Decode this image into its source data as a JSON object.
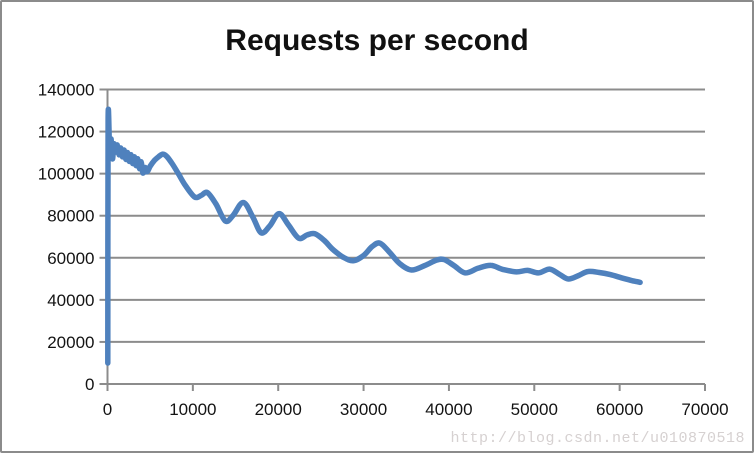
{
  "window": {
    "background": "#ffffff",
    "border_color": "#8b8b8b"
  },
  "watermark": {
    "text": "http://blog.csdn.net/u010870518",
    "color": "#d6d1d1"
  },
  "chart_data": {
    "type": "line",
    "title": "Requests per second",
    "xlabel": "",
    "ylabel": "",
    "xlim": [
      0,
      70000
    ],
    "ylim": [
      0,
      140000
    ],
    "x_ticks": [
      0,
      10000,
      20000,
      30000,
      40000,
      50000,
      60000,
      70000
    ],
    "y_ticks": [
      0,
      20000,
      40000,
      60000,
      80000,
      100000,
      120000,
      140000
    ],
    "grid": true,
    "legend": false,
    "grid_color": "#8c8c8c",
    "tick_label_color": "#131313",
    "series": [
      {
        "name": "Requests per second",
        "color": "#4f81bd",
        "points": [
          [
            40,
            10000
          ],
          [
            70,
            125800
          ],
          [
            260,
            109500
          ],
          [
            420,
            116500
          ],
          [
            580,
            107000
          ],
          [
            760,
            114200
          ],
          [
            950,
            110300
          ],
          [
            1150,
            113600
          ],
          [
            1350,
            109000
          ],
          [
            1550,
            112200
          ],
          [
            1750,
            108000
          ],
          [
            1950,
            111200
          ],
          [
            2150,
            106800
          ],
          [
            2350,
            110000
          ],
          [
            2550,
            105800
          ],
          [
            2750,
            109000
          ],
          [
            2950,
            104800
          ],
          [
            3150,
            108000
          ],
          [
            3350,
            103800
          ],
          [
            3550,
            107000
          ],
          [
            3750,
            102400
          ],
          [
            3950,
            105600
          ],
          [
            4150,
            100300
          ],
          [
            4400,
            102900
          ],
          [
            4650,
            100900
          ],
          [
            5000,
            103600
          ],
          [
            5500,
            106300
          ],
          [
            6000,
            108100
          ],
          [
            6500,
            109300
          ],
          [
            7000,
            107900
          ],
          [
            7600,
            104600
          ],
          [
            8300,
            100000
          ],
          [
            9100,
            94500
          ],
          [
            10200,
            88900
          ],
          [
            11000,
            89700
          ],
          [
            11700,
            91000
          ],
          [
            12700,
            85600
          ],
          [
            13800,
            77500
          ],
          [
            14700,
            80100
          ],
          [
            15900,
            86300
          ],
          [
            17000,
            79600
          ],
          [
            18000,
            71900
          ],
          [
            19000,
            75100
          ],
          [
            20100,
            81000
          ],
          [
            21200,
            75600
          ],
          [
            22400,
            69300
          ],
          [
            23400,
            70900
          ],
          [
            24300,
            71400
          ],
          [
            25400,
            68200
          ],
          [
            26400,
            64000
          ],
          [
            27600,
            60300
          ],
          [
            28800,
            58600
          ],
          [
            30000,
            61100
          ],
          [
            31000,
            65300
          ],
          [
            31900,
            67000
          ],
          [
            33000,
            62800
          ],
          [
            34200,
            57400
          ],
          [
            35600,
            54200
          ],
          [
            37200,
            56400
          ],
          [
            38500,
            58800
          ],
          [
            39400,
            59200
          ],
          [
            40600,
            56300
          ],
          [
            41900,
            52800
          ],
          [
            43400,
            55000
          ],
          [
            44900,
            56400
          ],
          [
            46300,
            54500
          ],
          [
            47900,
            53300
          ],
          [
            49200,
            54000
          ],
          [
            50500,
            52800
          ],
          [
            51800,
            54600
          ],
          [
            53000,
            52000
          ],
          [
            54000,
            49900
          ],
          [
            55200,
            51600
          ],
          [
            56300,
            53500
          ],
          [
            57600,
            53000
          ],
          [
            58900,
            52000
          ],
          [
            60200,
            50500
          ],
          [
            61300,
            49300
          ],
          [
            62400,
            48300
          ]
        ]
      }
    ]
  }
}
